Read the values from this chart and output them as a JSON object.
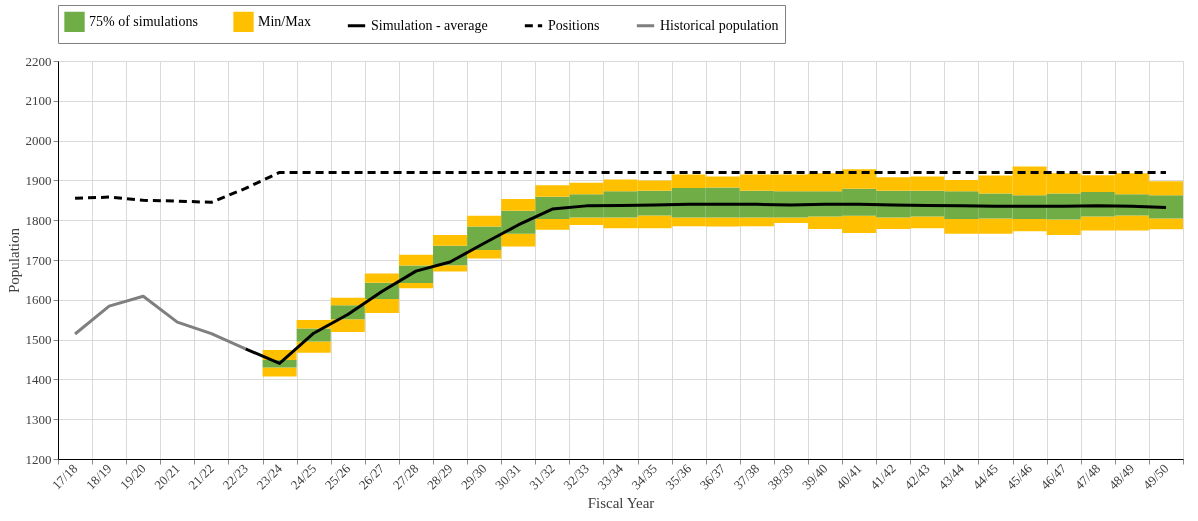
{
  "chart_data": {
    "type": "bar",
    "xlabel": "Fiscal Year",
    "ylabel": "Population",
    "ylim": [
      1200,
      2200
    ],
    "yticks": [
      1200,
      1300,
      1400,
      1500,
      1600,
      1700,
      1800,
      1900,
      2000,
      2100,
      2200
    ],
    "grid": true,
    "legend": "top",
    "categories": [
      "17/18",
      "18/19",
      "19/20",
      "20/21",
      "21/22",
      "22/23",
      "23/24",
      "24/25",
      "25/26",
      "26/27",
      "27/28",
      "28/29",
      "29/30",
      "30/31",
      "31/32",
      "32/33",
      "33/34",
      "34/35",
      "35/36",
      "36/37",
      "37/38",
      "38/39",
      "39/40",
      "40/41",
      "41/42",
      "42/43",
      "43/44",
      "44/45",
      "45/46",
      "46/47",
      "47/48",
      "48/49",
      "49/50"
    ],
    "series": [
      {
        "color": "#ffc000",
        "base": [
          null,
          null,
          null,
          null,
          null,
          null,
          1407,
          1467,
          1519,
          1567,
          1629,
          1671,
          1704,
          1734,
          1776,
          1788,
          1780,
          1780,
          1785,
          1784,
          1785,
          1793,
          1778,
          1768,
          1778,
          1780,
          1766,
          1766,
          1772,
          1763,
          1774,
          1774,
          1777
        ],
        "values": [
          null,
          null,
          null,
          null,
          null,
          null,
          23,
          28,
          32,
          35,
          13,
          16,
          21,
          32,
          27,
          19,
          27,
          32,
          22,
          23,
          22,
          14,
          31,
          43,
          29,
          29,
          37,
          38,
          31,
          39,
          35,
          38,
          27
        ]
      },
      {
        "name": "75% of simulations",
        "color": "#70ad47",
        "base": [
          null,
          null,
          null,
          null,
          null,
          null,
          1430,
          1495,
          1551,
          1602,
          1642,
          1687,
          1725,
          1766,
          1803,
          1807,
          1807,
          1812,
          1807,
          1807,
          1807,
          1807,
          1809,
          1811,
          1807,
          1809,
          1803,
          1804,
          1803,
          1802,
          1809,
          1812,
          1804
        ],
        "values": [
          null,
          null,
          null,
          null,
          null,
          null,
          19,
          33,
          35,
          41,
          44,
          49,
          59,
          58,
          56,
          58,
          66,
          62,
          74,
          75,
          67,
          66,
          64,
          68,
          67,
          65,
          70,
          63,
          60,
          65,
          62,
          53,
          59
        ]
      },
      {
        "name": "Min/Max",
        "color": "#ffc000",
        "base": [
          null,
          null,
          null,
          null,
          null,
          null,
          1449,
          1528,
          1586,
          1643,
          1686,
          1736,
          1784,
          1824,
          1859,
          1865,
          1873,
          1874,
          1881,
          1882,
          1874,
          1873,
          1873,
          1879,
          1874,
          1874,
          1873,
          1867,
          1863,
          1867,
          1871,
          1865,
          1863
        ],
        "values": [
          null,
          null,
          null,
          null,
          null,
          null,
          25,
          21,
          19,
          23,
          27,
          27,
          27,
          29,
          29,
          29,
          29,
          26,
          34,
          28,
          41,
          42,
          45,
          49,
          34,
          36,
          28,
          45,
          72,
          51,
          42,
          53,
          35
        ]
      },
      {
        "type": "line",
        "name": "Simulation - average",
        "color": "#000000",
        "line_style": "solid",
        "values": [
          null,
          null,
          null,
          null,
          null,
          1477,
          1440,
          1516,
          1563,
          1621,
          1672,
          1695,
          1742,
          1788,
          1828,
          1836,
          1837,
          1838,
          1840,
          1840,
          1840,
          1838,
          1840,
          1840,
          1838,
          1837,
          1836,
          1835,
          1835,
          1835,
          1836,
          1835,
          1832
        ]
      },
      {
        "type": "line",
        "name": "Positions",
        "color": "#000000",
        "line_style": "dashed",
        "values": [
          1855,
          1858,
          1850,
          1848,
          1845,
          1880,
          1920,
          1920,
          1920,
          1920,
          1920,
          1920,
          1920,
          1920,
          1920,
          1920,
          1920,
          1920,
          1920,
          1920,
          1920,
          1920,
          1920,
          1920,
          1920,
          1920,
          1920,
          1920,
          1920,
          1920,
          1920,
          1920,
          1920
        ]
      },
      {
        "type": "line",
        "name": "Historical population",
        "color": "#7f7f7f",
        "line_style": "solid",
        "values": [
          1514,
          1584,
          1609,
          1544,
          1515,
          1477,
          null,
          null,
          null,
          null,
          null,
          null,
          null,
          null,
          null,
          null,
          null,
          null,
          null,
          null,
          null,
          null,
          null,
          null,
          null,
          null,
          null,
          null,
          null,
          null,
          null,
          null,
          null
        ]
      }
    ]
  }
}
